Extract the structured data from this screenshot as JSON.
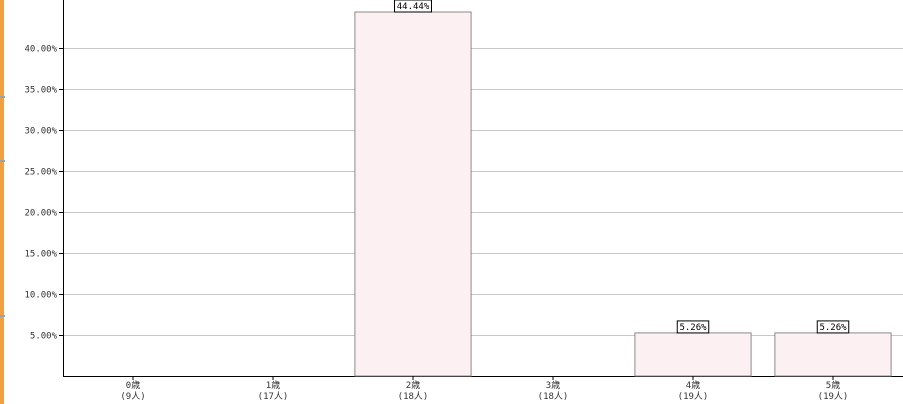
{
  "chart_data": {
    "type": "bar",
    "categories": [
      "0歳",
      "1歳",
      "2歳",
      "3歳",
      "4歳",
      "5歳"
    ],
    "category_counts": [
      "(9人)",
      "(17人)",
      "(18人)",
      "(18人)",
      "(19人)",
      "(19人)"
    ],
    "values": [
      0,
      0,
      44.44,
      0,
      5.26,
      5.26
    ],
    "data_labels": [
      "",
      "",
      "44.44%",
      "",
      "5.26%",
      "5.26%"
    ],
    "yticks": [
      "5.00%",
      "10.00%",
      "15.00%",
      "20.00%",
      "25.00%",
      "30.00%",
      "35.00%",
      "40.00%"
    ],
    "ytick_values": [
      5,
      10,
      15,
      20,
      25,
      30,
      35,
      40
    ],
    "ylim": [
      0,
      44.44
    ],
    "grid": true,
    "title": "",
    "xlabel": "",
    "ylabel": "",
    "colors": {
      "bar_fill": "#fdf0f3",
      "bar_stroke": "#8a8a8a",
      "grid": "#c8c8c8",
      "axis": "#000000",
      "accent": "#f0a040"
    }
  }
}
